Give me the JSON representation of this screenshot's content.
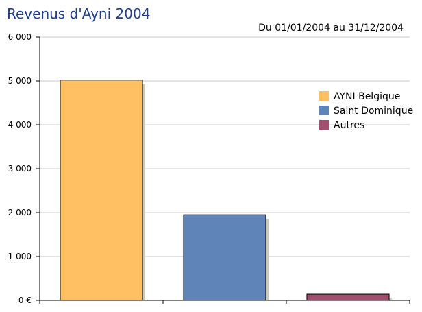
{
  "chart_data": {
    "type": "bar",
    "title": "Revenus d'Ayni 2004",
    "subtitle": "Du 01/01/2004 au 31/12/2004",
    "categories": [
      "AYNI Belgique",
      "Saint Dominique",
      "Autres"
    ],
    "values": [
      5020,
      1950,
      140
    ],
    "colors": [
      "#ffbf63",
      "#5f84b8",
      "#a0506e"
    ],
    "ylim": [
      0,
      6000
    ],
    "yticks": [
      {
        "value": 0,
        "label": "0 €"
      },
      {
        "value": 1000,
        "label": "1 000"
      },
      {
        "value": 2000,
        "label": "2 000"
      },
      {
        "value": 3000,
        "label": "3 000"
      },
      {
        "value": 4000,
        "label": "4 000"
      },
      {
        "value": 5000,
        "label": "5 000"
      },
      {
        "value": 6000,
        "label": "6 000"
      }
    ],
    "grid": true,
    "legend": {
      "position": "right",
      "items": [
        {
          "label": "AYNI Belgique",
          "color": "#ffbf63"
        },
        {
          "label": "Saint Dominique",
          "color": "#5f84b8"
        },
        {
          "label": "Autres",
          "color": "#a0506e"
        }
      ]
    }
  }
}
